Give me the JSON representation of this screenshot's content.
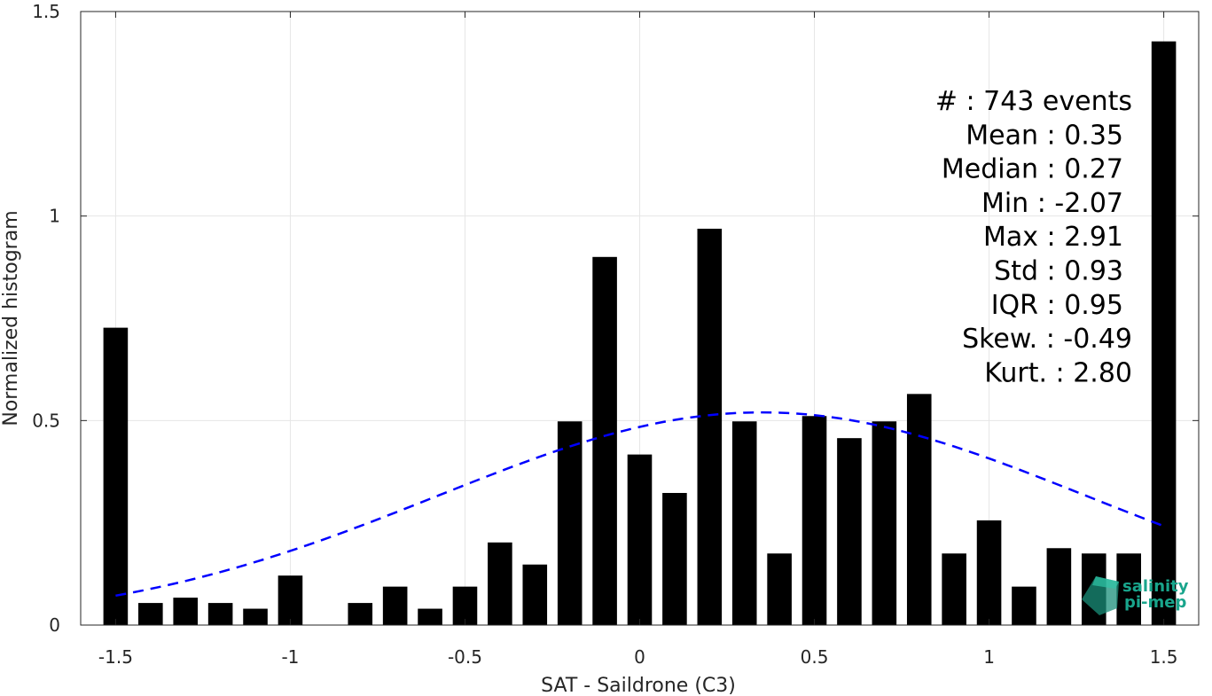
{
  "chart_data": {
    "type": "bar",
    "xlabel": "SAT - Saildrone (C3)",
    "ylabel": "Normalized histogram",
    "xlim": [
      -1.6,
      1.6
    ],
    "ylim": [
      0,
      1.5
    ],
    "xticks": [
      "-1.5",
      "-1",
      "-0.5",
      "0",
      "0.5",
      "1",
      "1.5"
    ],
    "xtick_values": [
      -1.5,
      -1,
      -0.5,
      0,
      0.5,
      1,
      1.5
    ],
    "yticks": [
      "0",
      "0.5",
      "1",
      "1.5"
    ],
    "ytick_values": [
      0,
      0.5,
      1,
      1.5
    ],
    "grid": true,
    "bar_color": "#000000",
    "x": [
      -1.5,
      -1.4,
      -1.3,
      -1.2,
      -1.1,
      -1.0,
      -0.9,
      -0.8,
      -0.7,
      -0.6,
      -0.5,
      -0.4,
      -0.3,
      -0.2,
      -0.1,
      0.0,
      0.1,
      0.2,
      0.3,
      0.4,
      0.5,
      0.6,
      0.7,
      0.8,
      0.9,
      1.0,
      1.1,
      1.2,
      1.3,
      1.4,
      1.5
    ],
    "values": [
      0.727,
      0.054,
      0.067,
      0.054,
      0.04,
      0.121,
      0.0,
      0.054,
      0.094,
      0.04,
      0.094,
      0.202,
      0.148,
      0.498,
      0.9,
      0.417,
      0.323,
      0.969,
      0.498,
      0.175,
      0.511,
      0.457,
      0.498,
      0.565,
      0.175,
      0.256,
      0.094,
      0.188,
      0.175,
      0.175,
      1.427
    ],
    "fit_curve": {
      "type": "gaussian",
      "mean": 0.35,
      "std": 0.93,
      "peak": 0.52,
      "x_range": [
        -1.5,
        1.5
      ],
      "color": "#0000ff",
      "style": "dashed"
    },
    "stats": [
      "#  : 743 events",
      "Mean : 0.35",
      "Median : 0.27",
      "Min : -2.07",
      "Max : 2.91",
      "Std : 0.93",
      "IQR : 0.95",
      "Skew. : -0.49",
      "Kurt. : 2.80"
    ],
    "logo": {
      "line1": "salinity",
      "line2": "pi-mep"
    }
  }
}
